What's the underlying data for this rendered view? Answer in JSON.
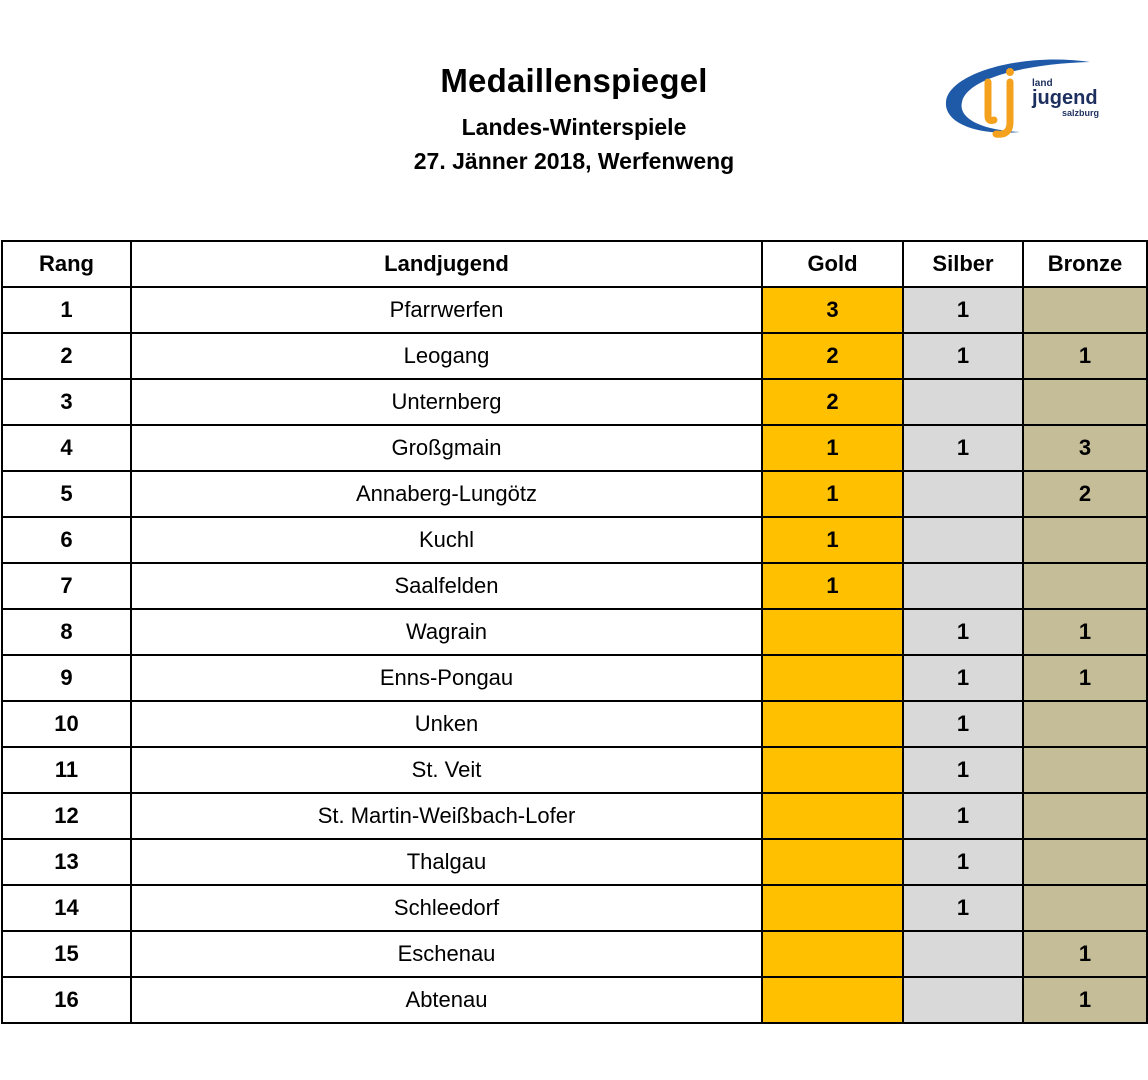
{
  "header": {
    "title": "Medaillenspiegel",
    "subtitle": "Landes-Winterspiele",
    "dateline": "27. Jänner 2018, Werfenweng"
  },
  "logo": {
    "letters": "lj",
    "line1": "land",
    "line2": "jugend",
    "line3": "salzburg",
    "colors": {
      "blue": "#1f5aa8",
      "orange": "#f4a11d",
      "text": "#1d2f5e"
    }
  },
  "colors": {
    "gold": "#ffc000",
    "silver": "#d9d9d9",
    "bronze": "#c4bd97"
  },
  "table": {
    "headers": {
      "rank": "Rang",
      "name": "Landjugend",
      "gold": "Gold",
      "silver": "Silber",
      "bronze": "Bronze"
    },
    "rows": [
      {
        "rank": "1",
        "name": "Pfarrwerfen",
        "gold": "3",
        "silver": "1",
        "bronze": ""
      },
      {
        "rank": "2",
        "name": "Leogang",
        "gold": "2",
        "silver": "1",
        "bronze": "1"
      },
      {
        "rank": "3",
        "name": "Unternberg",
        "gold": "2",
        "silver": "",
        "bronze": ""
      },
      {
        "rank": "4",
        "name": "Großgmain",
        "gold": "1",
        "silver": "1",
        "bronze": "3"
      },
      {
        "rank": "5",
        "name": "Annaberg-Lungötz",
        "gold": "1",
        "silver": "",
        "bronze": "2"
      },
      {
        "rank": "6",
        "name": "Kuchl",
        "gold": "1",
        "silver": "",
        "bronze": ""
      },
      {
        "rank": "7",
        "name": "Saalfelden",
        "gold": "1",
        "silver": "",
        "bronze": ""
      },
      {
        "rank": "8",
        "name": "Wagrain",
        "gold": "",
        "silver": "1",
        "bronze": "1"
      },
      {
        "rank": "9",
        "name": "Enns-Pongau",
        "gold": "",
        "silver": "1",
        "bronze": "1"
      },
      {
        "rank": "10",
        "name": "Unken",
        "gold": "",
        "silver": "1",
        "bronze": ""
      },
      {
        "rank": "11",
        "name": "St. Veit",
        "gold": "",
        "silver": "1",
        "bronze": ""
      },
      {
        "rank": "12",
        "name": "St. Martin-Weißbach-Lofer",
        "gold": "",
        "silver": "1",
        "bronze": ""
      },
      {
        "rank": "13",
        "name": "Thalgau",
        "gold": "",
        "silver": "1",
        "bronze": ""
      },
      {
        "rank": "14",
        "name": "Schleedorf",
        "gold": "",
        "silver": "1",
        "bronze": ""
      },
      {
        "rank": "15",
        "name": "Eschenau",
        "gold": "",
        "silver": "",
        "bronze": "1"
      },
      {
        "rank": "16",
        "name": "Abtenau",
        "gold": "",
        "silver": "",
        "bronze": "1"
      }
    ]
  }
}
